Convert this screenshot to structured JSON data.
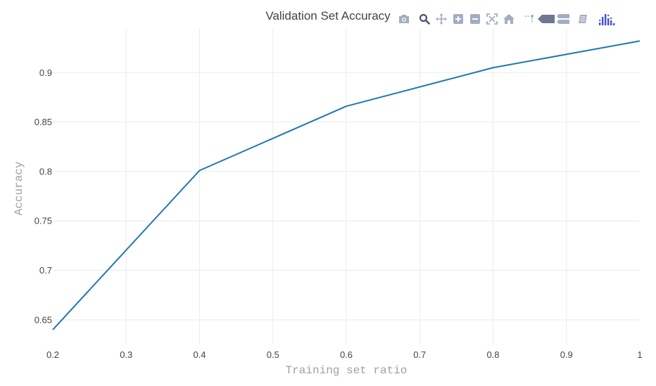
{
  "chart_data": {
    "type": "line",
    "title": "Validation Set Accuracy",
    "xlabel": "Training set ratio",
    "ylabel": "Accuracy",
    "xlim": [
      0.2,
      1.0
    ],
    "ylim": [
      0.625,
      0.945
    ],
    "xticks": [
      0.2,
      0.3,
      0.4,
      0.5,
      0.6,
      0.7,
      0.8,
      0.9,
      1.0
    ],
    "xtick_labels": [
      "0.2",
      "0.3",
      "0.4",
      "0.5",
      "0.6",
      "0.7",
      "0.8",
      "0.9",
      "1"
    ],
    "yticks": [
      0.65,
      0.7,
      0.75,
      0.8,
      0.85,
      0.9
    ],
    "ytick_labels": [
      "0.65",
      "0.7",
      "0.75",
      "0.8",
      "0.85",
      "0.9"
    ],
    "grid": true,
    "series": [
      {
        "x": [
          0.2,
          0.4,
          0.6,
          0.8,
          1.0
        ],
        "y": [
          0.64,
          0.801,
          0.866,
          0.905,
          0.932
        ],
        "color": "#1f77b4"
      }
    ]
  },
  "modebar": {
    "icon_color": "#a3acc0",
    "logo_color": "#3f4fdc",
    "buttons": [
      {
        "id": "camera",
        "icon": "camera-icon",
        "title": "Download plot as a png"
      },
      {
        "id": "zoom",
        "icon": "zoom-icon",
        "title": "Zoom"
      },
      {
        "id": "pan",
        "icon": "pan-icon",
        "title": "Pan"
      },
      {
        "id": "zoom-in",
        "icon": "zoom-in-icon",
        "title": "Zoom in"
      },
      {
        "id": "zoom-out",
        "icon": "zoom-out-icon",
        "title": "Zoom out"
      },
      {
        "id": "autoscale",
        "icon": "autoscale-icon",
        "title": "Autoscale"
      },
      {
        "id": "reset",
        "icon": "home-icon",
        "title": "Reset axes"
      },
      {
        "id": "spikelines",
        "icon": "spikelines-icon",
        "title": "Toggle Spike Lines"
      },
      {
        "id": "hover-closest",
        "icon": "hover-closest-icon",
        "title": "Show closest data on hover"
      },
      {
        "id": "hover-compare",
        "icon": "hover-compare-icon",
        "title": "Compare data on hover"
      },
      {
        "id": "edit",
        "icon": "edit-in-chart-studio-icon",
        "title": "Edit in Chart Studio"
      },
      {
        "id": "logo",
        "icon": "plotly-logo-icon",
        "title": "Produced with Plotly"
      }
    ]
  }
}
